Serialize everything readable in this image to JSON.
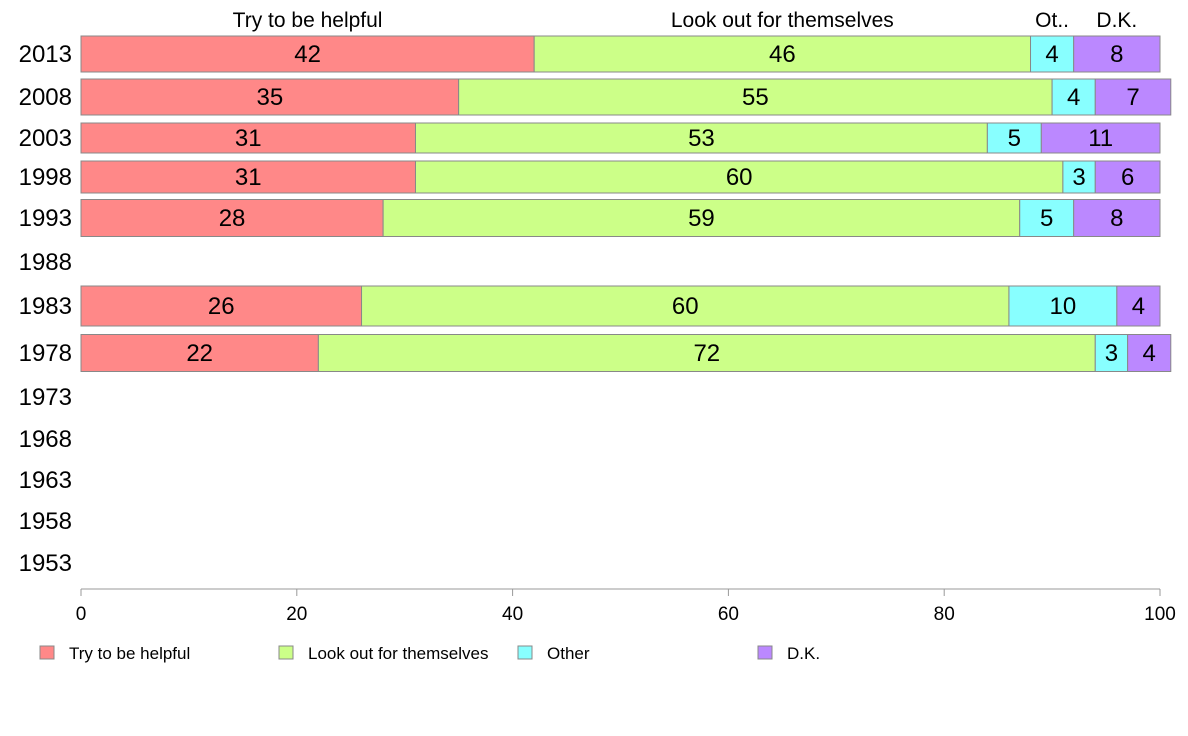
{
  "chart_data": {
    "type": "bar",
    "orientation": "horizontal",
    "stacked": true,
    "xlim": [
      0,
      100
    ],
    "x_ticks": [
      0,
      20,
      40,
      60,
      80,
      100
    ],
    "grid": false,
    "legend_position": "bottom",
    "categories": [
      "2013",
      "2008",
      "2003",
      "1998",
      "1993",
      "1988",
      "1983",
      "1978",
      "1973",
      "1968",
      "1963",
      "1958",
      "1953"
    ],
    "series": [
      {
        "name": "Try to be helpful",
        "color": "#ff8888",
        "values": [
          42,
          35,
          31,
          31,
          28,
          null,
          26,
          22,
          null,
          null,
          null,
          null,
          null
        ]
      },
      {
        "name": "Look out for themselves",
        "color": "#ccff88",
        "values": [
          46,
          55,
          53,
          60,
          59,
          null,
          60,
          72,
          null,
          null,
          null,
          null,
          null
        ]
      },
      {
        "name": "Other",
        "color": "#88ffff",
        "values": [
          4,
          4,
          5,
          3,
          5,
          null,
          10,
          3,
          null,
          null,
          null,
          null,
          null
        ]
      },
      {
        "name": "D.K.",
        "color": "#bb88ff",
        "values": [
          8,
          7,
          11,
          6,
          8,
          null,
          4,
          4,
          null,
          null,
          null,
          null,
          null
        ]
      }
    ],
    "column_headers": [
      "Try to be helpful",
      "Look out for themselves",
      "Ot..",
      "D.K."
    ]
  }
}
